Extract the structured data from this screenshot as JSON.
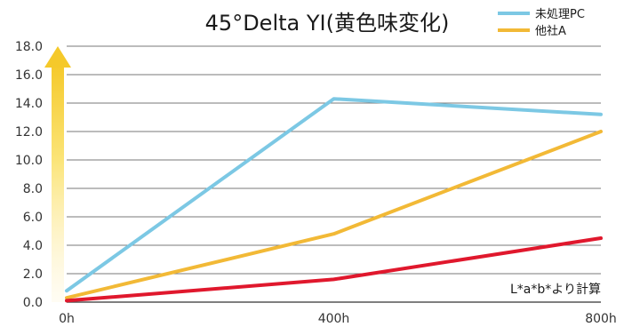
{
  "chart_data": {
    "type": "line",
    "title": "45°Delta YI(黄色味変化)",
    "categories": [
      "0h",
      "400h",
      "800h"
    ],
    "series": [
      {
        "name": "未処理PC",
        "color": "#7cc8e4",
        "values": [
          0.8,
          14.3,
          13.2
        ]
      },
      {
        "name": "他社A",
        "color": "#f2b936",
        "values": [
          0.3,
          4.8,
          12.0
        ]
      },
      {
        "name": "",
        "color": "#e0182d",
        "values": [
          0.1,
          1.6,
          4.5
        ]
      }
    ],
    "yticks": [
      "0.0",
      "2.0",
      "4.0",
      "6.0",
      "8.0",
      "10.0",
      "12.0",
      "14.0",
      "16.0",
      "18.0"
    ],
    "ylim": [
      0,
      18
    ],
    "grid": true,
    "legend_position": "top-right",
    "annotation": "L*a*b*より計算"
  }
}
